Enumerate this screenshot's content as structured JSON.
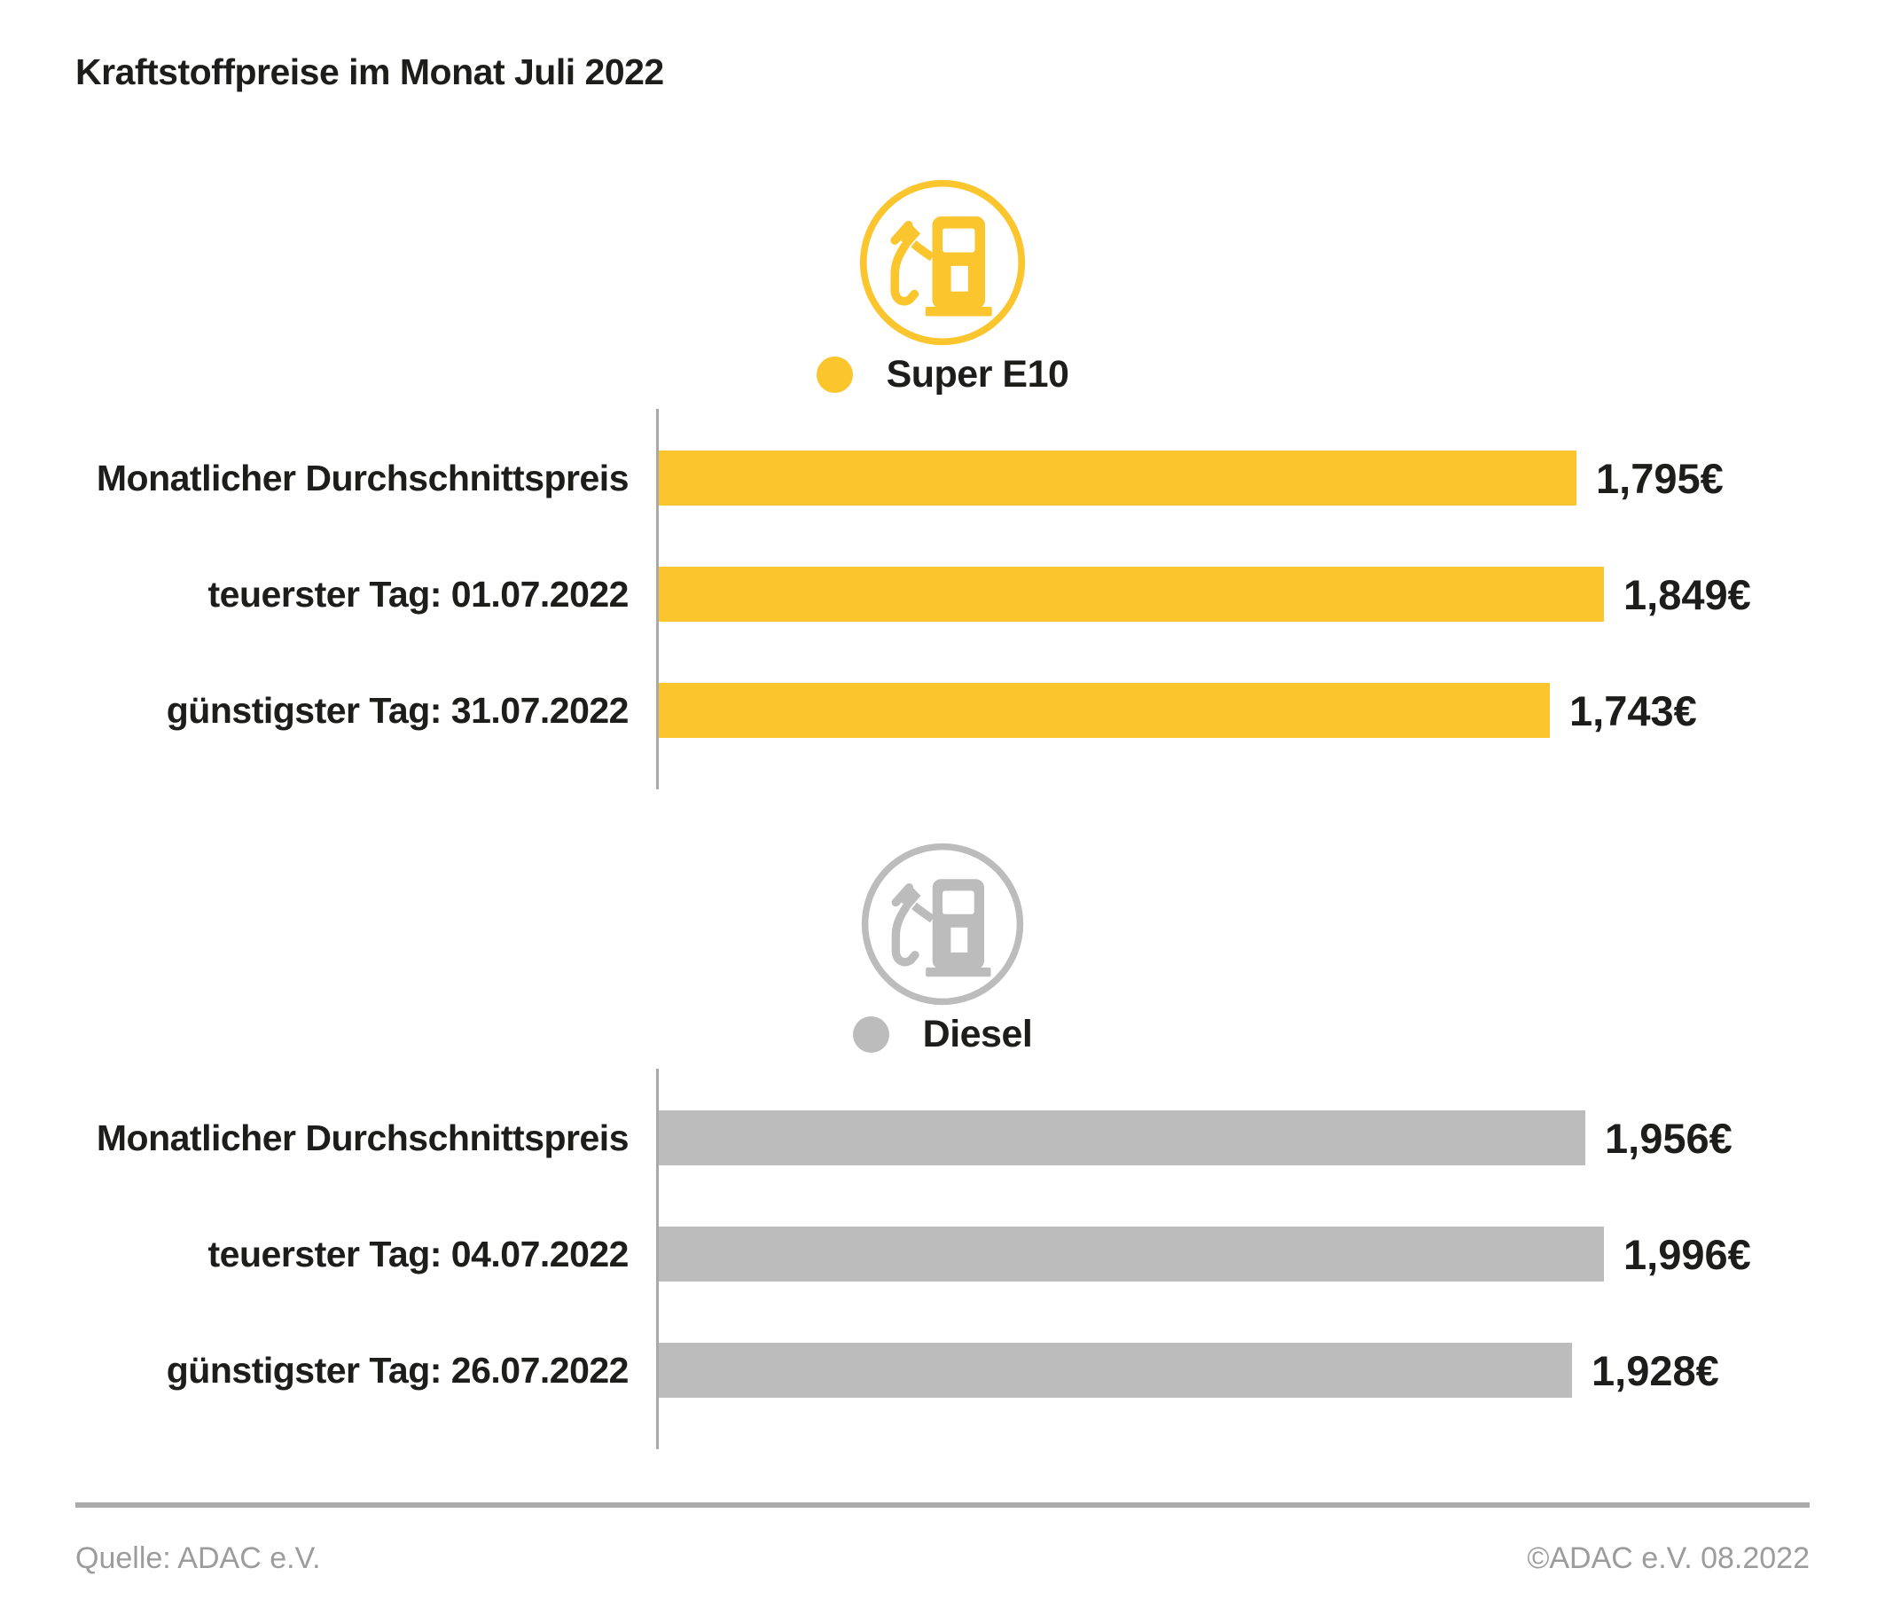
{
  "title": "Kraftstoffpreise im Monat Juli 2022",
  "chart_data": [
    {
      "type": "bar",
      "orientation": "horizontal",
      "legend": "Super E10",
      "color": "#FAC52D",
      "icon": "fuel-pump-icon",
      "categories": [
        "Monatlicher Durchschnittspreis",
        "teuerster Tag: 01.07.2022",
        "günstigster Tag: 31.07.2022"
      ],
      "values": [
        1.795,
        1.849,
        1.743
      ],
      "value_labels": [
        "1,795€",
        "1,849€",
        "1,743€"
      ],
      "grid": false,
      "legend_position": "top-center"
    },
    {
      "type": "bar",
      "orientation": "horizontal",
      "legend": "Diesel",
      "color": "#BCBCBC",
      "icon": "fuel-pump-icon",
      "categories": [
        "Monatlicher Durchschnittspreis",
        "teuerster Tag: 04.07.2022",
        "günstigster Tag: 26.07.2022"
      ],
      "values": [
        1.956,
        1.996,
        1.928
      ],
      "value_labels": [
        "1,956€",
        "1,996€",
        "1,928€"
      ],
      "grid": false,
      "legend_position": "top-center"
    }
  ],
  "footer": {
    "source": "Quelle: ADAC e.V.",
    "copyright": "©ADAC e.V. 08.2022"
  }
}
